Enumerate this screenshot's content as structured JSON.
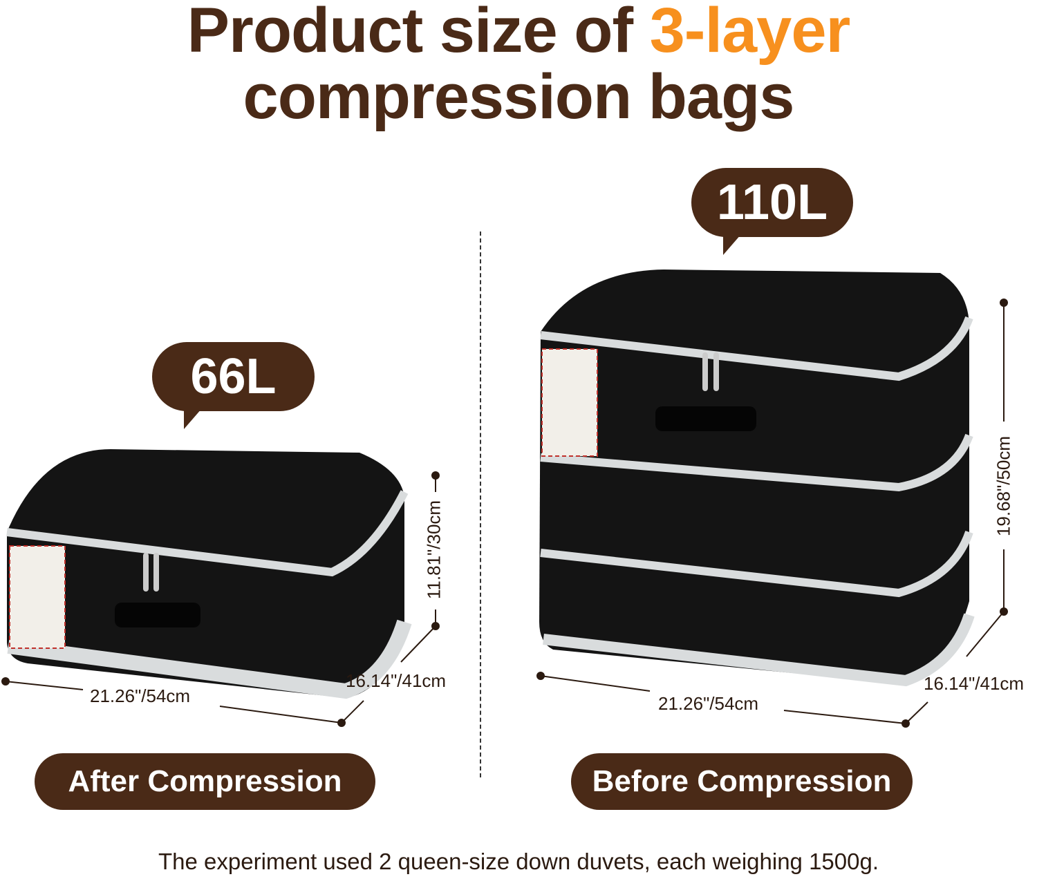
{
  "title": {
    "line1_prefix": "Product size of ",
    "line1_accent": "3-layer",
    "line2": "compression bags"
  },
  "colors": {
    "brand_brown": "#4a2a17",
    "accent_orange": "#f7901e",
    "bag_black": "#111111",
    "zipper_gray": "#d9dcdd"
  },
  "after": {
    "capacity": "66L",
    "label": "After Compression",
    "dimensions": {
      "width": "21.26\"/54cm",
      "depth": "16.14\"/41cm",
      "height": "11.81\"/30cm"
    }
  },
  "before": {
    "capacity": "110L",
    "label": "Before Compression",
    "dimensions": {
      "width": "21.26\"/54cm",
      "depth": "16.14\"/41cm",
      "height": "19.68\"/50cm"
    }
  },
  "footer": "The experiment used 2 queen-size down duvets, each weighing 1500g."
}
